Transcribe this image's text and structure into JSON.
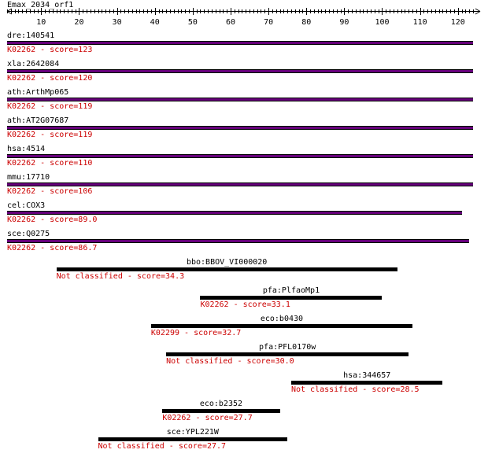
{
  "query": {
    "name": "Emax_2034_orf1",
    "axis_start": 1,
    "axis_end": 124,
    "tick_labels": [
      "10",
      "20",
      "30",
      "40",
      "50",
      "60",
      "70",
      "80",
      "90",
      "100",
      "110",
      "120"
    ]
  },
  "colors": {
    "kegg_bar": "#66007a",
    "bar_outline": "#000000",
    "annotation": "#cc0000"
  },
  "hits": [
    {
      "gene": "dre:140541",
      "label": "K02262 - score=123",
      "start": 1,
      "end": 124,
      "kegg": true
    },
    {
      "gene": "xla:2642084",
      "label": "K02262 - score=120",
      "start": 1,
      "end": 124,
      "kegg": true
    },
    {
      "gene": "ath:ArthMp065",
      "label": "K02262 - score=119",
      "start": 1,
      "end": 124,
      "kegg": true
    },
    {
      "gene": "ath:AT2G07687",
      "label": "K02262 - score=119",
      "start": 1,
      "end": 124,
      "kegg": true
    },
    {
      "gene": "hsa:4514",
      "label": "K02262 - score=110",
      "start": 1,
      "end": 124,
      "kegg": true
    },
    {
      "gene": "mmu:17710",
      "label": "K02262 - score=106",
      "start": 1,
      "end": 124,
      "kegg": true
    },
    {
      "gene": "cel:COX3",
      "label": "K02262 - score=89.0",
      "start": 1,
      "end": 121,
      "kegg": true
    },
    {
      "gene": "sce:Q0275",
      "label": "K02262 - score=86.7",
      "start": 1,
      "end": 123,
      "kegg": true
    },
    {
      "gene": "bbo:BBOV_VI000020",
      "label": "Not classified - score=34.3",
      "start": 14,
      "end": 104,
      "kegg": false
    },
    {
      "gene": "pfa:PlfaoMp1",
      "label": "K02262 - score=33.1",
      "start": 52,
      "end": 100,
      "kegg": false
    },
    {
      "gene": "eco:b0430",
      "label": "K02299 - score=32.7",
      "start": 39,
      "end": 108,
      "kegg": false
    },
    {
      "gene": "pfa:PFL0170w",
      "label": "Not classified - score=30.0",
      "start": 43,
      "end": 107,
      "kegg": false
    },
    {
      "gene": "hsa:344657",
      "label": "Not classified - score=28.5",
      "start": 76,
      "end": 116,
      "kegg": false
    },
    {
      "gene": "eco:b2352",
      "label": "K02262 - score=27.7",
      "start": 42,
      "end": 73,
      "kegg": false
    },
    {
      "gene": "sce:YPL221W",
      "label": "Not classified - score=27.7",
      "start": 25,
      "end": 75,
      "kegg": false
    }
  ]
}
